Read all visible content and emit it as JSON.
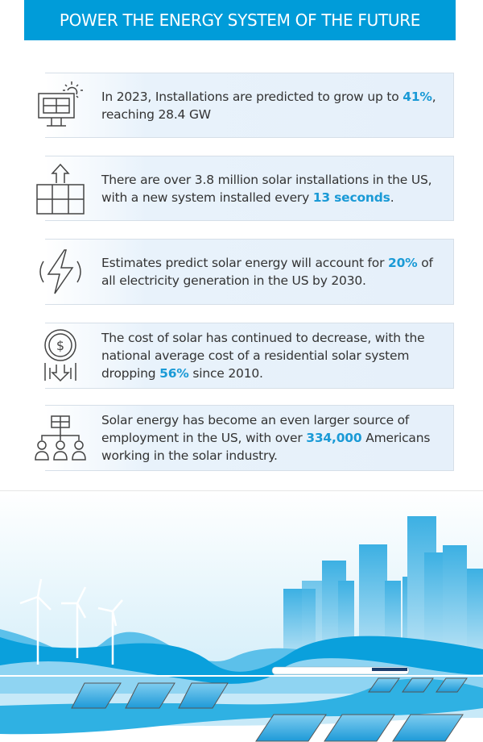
{
  "header": {
    "title": "POWER THE ENERGY SYSTEM OF THE FUTURE"
  },
  "colors": {
    "accent": "#009cd9",
    "highlight": "#1a9ad6",
    "text": "#333333"
  },
  "facts": [
    {
      "icon": "solar-panel-sun-icon",
      "before": "In 2023, Installations are predicted to grow up to ",
      "highlight": "41%",
      "after": ", reaching 28.4 GW"
    },
    {
      "icon": "solar-grid-arrow-up-icon",
      "before": "There are over 3.8 million solar installations in the US, with a new system installed every ",
      "highlight": "13 seconds",
      "after": "."
    },
    {
      "icon": "lightning-bolt-icon",
      "before": "Estimates predict solar energy will account for ",
      "highlight": "20%",
      "after": " of all electricity generation in the US by 2030."
    },
    {
      "icon": "dollar-coin-down-arrow-icon",
      "before": "The cost of solar has continued to decrease, with the national average cost of a residential solar system dropping ",
      "highlight": "56%",
      "after": " since 2010."
    },
    {
      "icon": "solar-panel-people-icon",
      "before": "Solar energy has become an even larger source of employment in the US, with over ",
      "highlight": "334,000",
      "after": " Americans working in the solar industry."
    }
  ]
}
